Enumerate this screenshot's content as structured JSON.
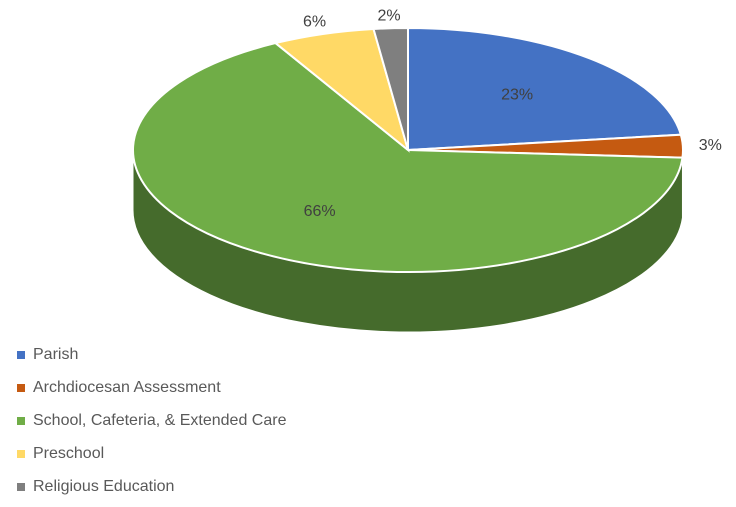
{
  "chart_data": {
    "type": "pie",
    "categories": [
      "Parish",
      "Archdiocesan Assessment",
      "School, Cafeteria, & Extended Care",
      "Preschool",
      "Religious Education"
    ],
    "values": [
      23,
      3,
      66,
      6,
      2
    ],
    "value_labels": [
      "23%",
      "3%",
      "66%",
      "6%",
      "2%"
    ],
    "colors": [
      "#4472c4",
      "#c55a11",
      "#70ad47",
      "#ffd966",
      "#7f7f7f"
    ],
    "legend": "bottom-left"
  }
}
